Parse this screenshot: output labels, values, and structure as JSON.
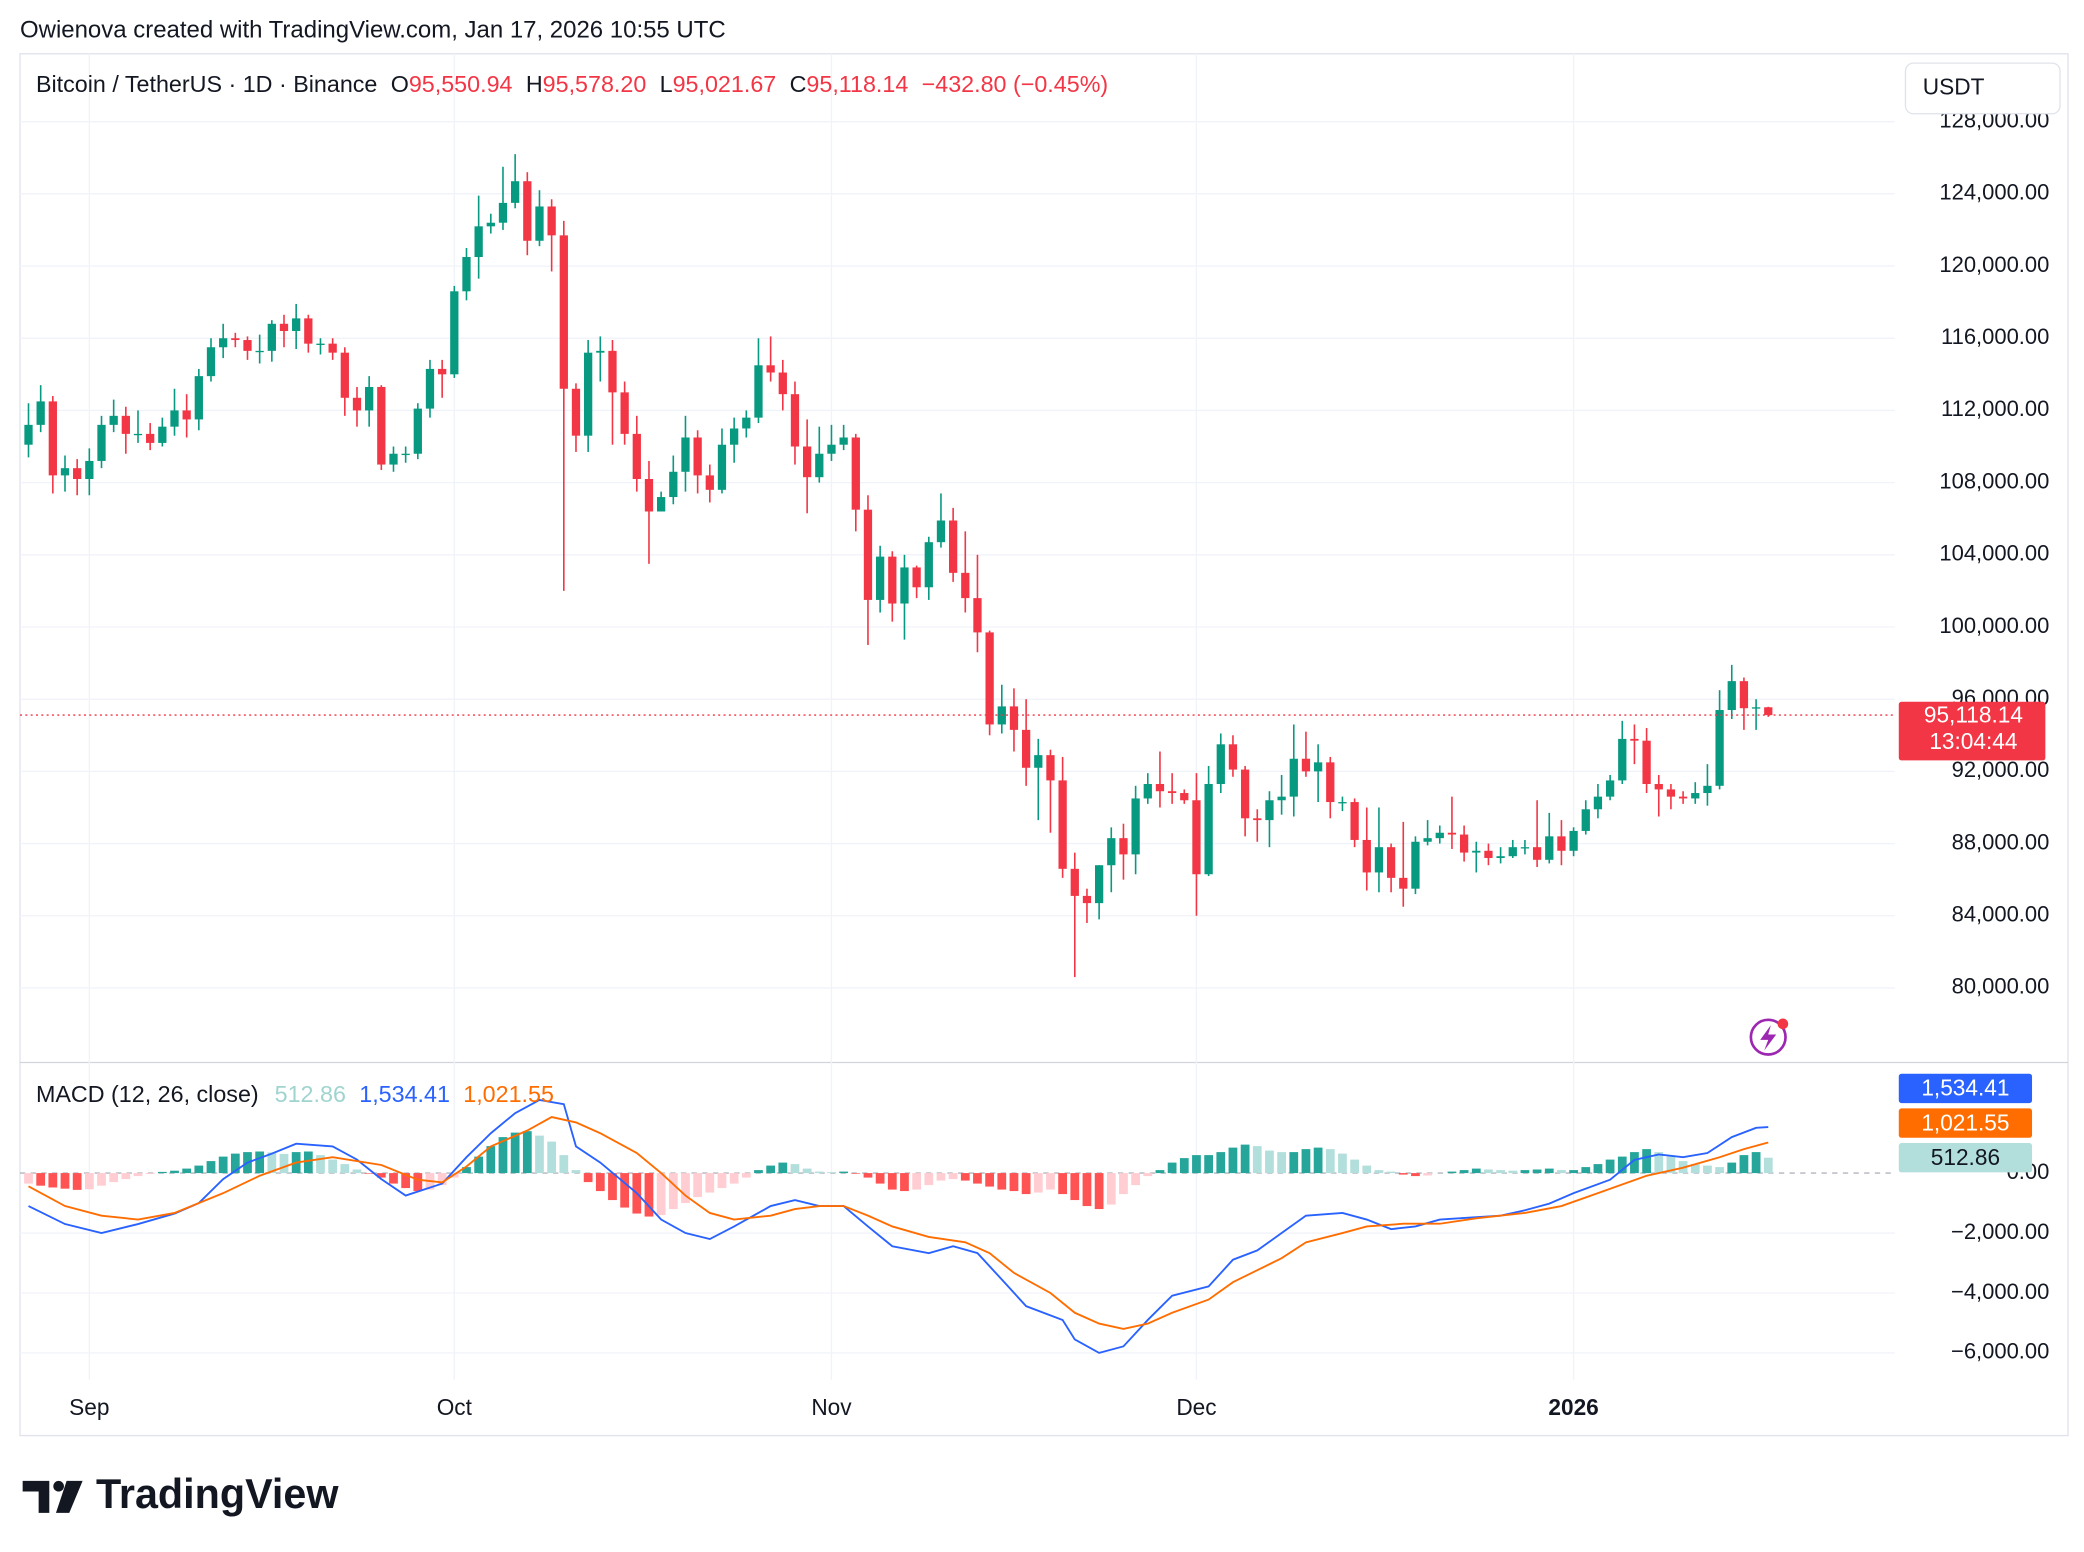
{
  "header": {
    "author": "Owienova created with TradingView.com, Jan 17, 2026 10:55 UTC",
    "brand": "TradingView"
  },
  "chart_data": [
    {
      "type": "candlestick",
      "title": "Bitcoin / TetherUS · 1D · Binance",
      "currency": "USDT",
      "legend": [
        {
          "key": "O",
          "value": "95,550.94"
        },
        {
          "key": "H",
          "value": "95,578.20"
        },
        {
          "key": "L",
          "value": "95,021.67"
        },
        {
          "key": "C",
          "value": "95,118.14"
        }
      ],
      "change": "−432.80 (−0.45%)",
      "last_label": "95,118.14",
      "countdown": "13:04:44",
      "up_color": "#089981",
      "down_color": "#f23645",
      "grid": true,
      "xlim": [
        -0.7,
        153.4
      ],
      "xticks": [
        {
          "value": 5,
          "label": "Sep"
        },
        {
          "value": 35,
          "label": "Oct"
        },
        {
          "value": 66,
          "label": "Nov"
        },
        {
          "value": 96,
          "label": "Dec"
        },
        {
          "value": 127,
          "label": "2026",
          "bold": true
        }
      ],
      "ylim": [
        75870,
        131760
      ],
      "yticks": [
        {
          "value": 80000,
          "label": "80,000.00"
        },
        {
          "value": 84000,
          "label": "84,000.00"
        },
        {
          "value": 88000,
          "label": "88,000.00"
        },
        {
          "value": 92000,
          "label": "92,000.00"
        },
        {
          "value": 96000,
          "label": "96,000.00"
        },
        {
          "value": 100000,
          "label": "100,000.00"
        },
        {
          "value": 104000,
          "label": "104,000.00"
        },
        {
          "value": 108000,
          "label": "108,000.00"
        },
        {
          "value": 112000,
          "label": "112,000.00"
        },
        {
          "value": 116000,
          "label": "116,000.00"
        },
        {
          "value": 120000,
          "label": "120,000.00"
        },
        {
          "value": 124000,
          "label": "124,000.00"
        },
        {
          "value": 128000,
          "label": "128,000.00"
        }
      ],
      "open": [
        110100,
        111200,
        112500,
        108400,
        108800,
        108200,
        109200,
        111200,
        111700,
        110700,
        110700,
        110200,
        111100,
        112000,
        111500,
        113900,
        115500,
        116000,
        115900,
        115300,
        115300,
        116800,
        116400,
        117100,
        115700,
        115700,
        115200,
        112700,
        112000,
        113300,
        109000,
        109600,
        109600,
        112100,
        114300,
        114000,
        118600,
        120500,
        122200,
        122400,
        123500,
        124700,
        121400,
        123300,
        121700,
        113200,
        110600,
        115200,
        115300,
        113000,
        110700,
        108200,
        106400,
        107200,
        108600,
        110500,
        108400,
        107600,
        110100,
        111000,
        111600,
        114500,
        114100,
        112900,
        110000,
        108300,
        109600,
        110100,
        110500,
        106500,
        101500,
        103900,
        101300,
        103300,
        102200,
        104700,
        105900,
        103000,
        101600,
        99700,
        94600,
        95600,
        94300,
        92200,
        92900,
        91500,
        86600,
        85100,
        84700,
        86800,
        88300,
        87400,
        90500,
        91300,
        90900,
        90800,
        90400,
        86300,
        91300,
        93500,
        92100,
        89400,
        89300,
        90400,
        90600,
        92700,
        92000,
        92500,
        90300,
        90300,
        88200,
        86400,
        87800,
        86100,
        85500,
        88100,
        88300,
        88600,
        88500,
        87500,
        87600,
        87200,
        87300,
        87800,
        87800,
        87100,
        88400,
        87600,
        88700,
        89900,
        90600,
        91500,
        93800,
        93700,
        91300,
        91000,
        90600,
        90500,
        90800,
        91200,
        95400,
        97000,
        95500,
        95550.94
      ],
      "high": [
        112400,
        113400,
        112800,
        109500,
        109300,
        109900,
        111700,
        112600,
        112200,
        112000,
        111300,
        111600,
        113200,
        112900,
        114300,
        116000,
        116800,
        116300,
        116100,
        116200,
        117000,
        117300,
        117900,
        117300,
        116000,
        116000,
        115500,
        113300,
        113900,
        113400,
        110000,
        110000,
        112400,
        114800,
        114800,
        118900,
        121000,
        123900,
        122900,
        125500,
        126200,
        125200,
        124200,
        123700,
        122500,
        113500,
        115900,
        116100,
        115900,
        113600,
        111700,
        109200,
        107500,
        109500,
        111700,
        110900,
        109000,
        111000,
        111600,
        112000,
        116000,
        116100,
        114800,
        113600,
        111500,
        111100,
        111200,
        111200,
        110700,
        107300,
        104500,
        104200,
        104000,
        103400,
        105000,
        107400,
        106600,
        105300,
        104000,
        99800,
        96800,
        96600,
        96000,
        93800,
        93200,
        92800,
        87500,
        85500,
        86800,
        88900,
        89100,
        91200,
        91900,
        93100,
        91900,
        91000,
        91900,
        92300,
        94100,
        94000,
        92300,
        89900,
        90900,
        91800,
        94600,
        94200,
        93500,
        92800,
        90600,
        90500,
        90000,
        90000,
        88000,
        89200,
        88400,
        89300,
        89000,
        90600,
        89000,
        88100,
        88000,
        87800,
        88200,
        88200,
        90400,
        89700,
        89300,
        88900,
        90400,
        91300,
        91800,
        94800,
        94600,
        94400,
        91800,
        91300,
        90900,
        91400,
        92400,
        96500,
        97900,
        97200,
        96000,
        95578.2
      ],
      "low": [
        109400,
        110800,
        107400,
        107500,
        107300,
        107300,
        108800,
        110800,
        109600,
        110200,
        109800,
        110000,
        110600,
        110500,
        110900,
        113600,
        114900,
        115500,
        114800,
        114600,
        114700,
        115500,
        115400,
        115200,
        115100,
        114800,
        111700,
        111100,
        111100,
        108700,
        108600,
        109100,
        109300,
        111600,
        112700,
        113800,
        118100,
        119300,
        121800,
        122000,
        123200,
        120600,
        121100,
        119700,
        102000,
        109700,
        109700,
        113600,
        110100,
        110100,
        107500,
        103500,
        106400,
        106800,
        107500,
        107400,
        106900,
        107400,
        109100,
        110500,
        111300,
        113600,
        112000,
        109000,
        106300,
        108000,
        109200,
        109800,
        105300,
        99000,
        100800,
        100300,
        99300,
        101600,
        101500,
        104400,
        102500,
        100800,
        98600,
        94000,
        94100,
        93100,
        91200,
        89300,
        88600,
        86100,
        80600,
        83600,
        83800,
        85300,
        86000,
        86300,
        90200,
        90000,
        90200,
        90200,
        84000,
        86200,
        90800,
        91700,
        88400,
        88100,
        87800,
        89600,
        89500,
        91700,
        90300,
        89400,
        89800,
        87800,
        85400,
        85300,
        85300,
        84500,
        85200,
        87900,
        88000,
        87700,
        87000,
        86400,
        86800,
        86900,
        87200,
        87400,
        86700,
        86900,
        86800,
        87300,
        88500,
        89400,
        90400,
        91300,
        92400,
        90800,
        89500,
        89900,
        90200,
        90200,
        90100,
        91000,
        94900,
        94300,
        94300,
        95021.67
      ],
      "close": [
        111200,
        112500,
        108400,
        108800,
        108200,
        109200,
        111200,
        111700,
        110700,
        110700,
        110200,
        111100,
        112000,
        111500,
        113900,
        115500,
        116000,
        115900,
        115300,
        115300,
        116800,
        116400,
        117100,
        115700,
        115700,
        115200,
        112700,
        112000,
        113300,
        109000,
        109600,
        109600,
        112100,
        114300,
        114000,
        118600,
        120500,
        122200,
        122400,
        123500,
        124700,
        121400,
        123300,
        121700,
        113200,
        110600,
        115200,
        115300,
        113000,
        110700,
        108200,
        106400,
        107200,
        108600,
        110500,
        108400,
        107600,
        110100,
        111000,
        111600,
        114500,
        114100,
        112900,
        110000,
        108300,
        109600,
        110100,
        110500,
        106500,
        101500,
        103900,
        101300,
        103300,
        102200,
        104700,
        105900,
        103000,
        101600,
        99700,
        94600,
        95600,
        94300,
        92200,
        92900,
        91500,
        86600,
        85100,
        84700,
        86800,
        88300,
        87400,
        90500,
        91300,
        90900,
        90800,
        90400,
        86300,
        91300,
        93500,
        92100,
        89400,
        89300,
        90400,
        90600,
        92700,
        92000,
        92500,
        90300,
        90300,
        88200,
        86400,
        87800,
        86100,
        85500,
        88100,
        88300,
        88600,
        88500,
        87500,
        87600,
        87200,
        87300,
        87800,
        87800,
        87100,
        88400,
        87600,
        88700,
        89900,
        90600,
        91500,
        93800,
        93700,
        91300,
        91000,
        90600,
        90500,
        90800,
        91200,
        95400,
        97000,
        95500,
        95550.94,
        95118.14
      ]
    },
    {
      "type": "macd",
      "title": "MACD (12, 26, close)",
      "xlim": [
        -0.7,
        153.4
      ],
      "ylim": [
        -6890,
        3690
      ],
      "yticks": [
        {
          "value": 0,
          "label": "0.00"
        },
        {
          "value": -2000,
          "label": "−2,000.00"
        },
        {
          "value": -4000,
          "label": "−4,000.00"
        },
        {
          "value": -6000,
          "label": "−6,000.00"
        }
      ],
      "histogram": {
        "value_label": "512.86",
        "colors": [
          "#26a69a",
          "#b2dfdb",
          "#ff5252",
          "#ffcdd2"
        ],
        "values": [
          -350,
          -420,
          -480,
          -520,
          -560,
          -540,
          -420,
          -300,
          -200,
          -100,
          -30,
          40,
          80,
          150,
          250,
          400,
          550,
          650,
          700,
          720,
          690,
          640,
          700,
          720,
          600,
          450,
          300,
          120,
          -20,
          -150,
          -350,
          -500,
          -600,
          -550,
          -400,
          -150,
          200,
          550,
          900,
          1200,
          1350,
          1400,
          1250,
          1050,
          600,
          100,
          -300,
          -600,
          -900,
          -1150,
          -1350,
          -1450,
          -1400,
          -1200,
          -1000,
          -800,
          -650,
          -500,
          -350,
          -150,
          100,
          250,
          350,
          300,
          150,
          50,
          30,
          50,
          -20,
          -150,
          -350,
          -550,
          -600,
          -550,
          -400,
          -250,
          -200,
          -250,
          -350,
          -450,
          -550,
          -600,
          -700,
          -650,
          -550,
          -700,
          -900,
          -1100,
          -1200,
          -1050,
          -700,
          -400,
          -100,
          100,
          350,
          500,
          600,
          600,
          700,
          850,
          950,
          900,
          750,
          700,
          700,
          800,
          850,
          800,
          650,
          450,
          250,
          100,
          50,
          -50,
          -100,
          -80,
          0,
          50,
          100,
          150,
          120,
          100,
          80,
          100,
          120,
          150,
          100,
          100,
          200,
          300,
          450,
          550,
          700,
          800,
          700,
          550,
          400,
          300,
          250,
          200,
          350,
          600,
          700,
          512.86
        ]
      },
      "series": [
        {
          "color": "#2962ff",
          "value_label": "1,534.41",
          "x": [
            0,
            3,
            6,
            9,
            12,
            14,
            16,
            18,
            20,
            22,
            25,
            27,
            29,
            31,
            34,
            36,
            38,
            40,
            42,
            44,
            45,
            47,
            50,
            52,
            54,
            56,
            58,
            61,
            63,
            65,
            67,
            69,
            71,
            74,
            76,
            78,
            80,
            82,
            85,
            86,
            88,
            90,
            92,
            94,
            97,
            99,
            101,
            103,
            105,
            108,
            110,
            112,
            114,
            116,
            119,
            121,
            123,
            125,
            127,
            130,
            132,
            134,
            136,
            138,
            140,
            142,
            143
          ],
          "values": [
            -1100,
            -1700,
            -2000,
            -1700,
            -1350,
            -1000,
            -200,
            350,
            650,
            980,
            890,
            450,
            -200,
            -750,
            -350,
            530,
            1330,
            2000,
            2440,
            2300,
            890,
            350,
            -670,
            -1550,
            -2000,
            -2200,
            -1780,
            -1100,
            -900,
            -1100,
            -1100,
            -1780,
            -2440,
            -2670,
            -2440,
            -2670,
            -3550,
            -4440,
            -4900,
            -5550,
            -6000,
            -5780,
            -4900,
            -4090,
            -3780,
            -2890,
            -2580,
            -2000,
            -1420,
            -1330,
            -1550,
            -1870,
            -1780,
            -1550,
            -1470,
            -1420,
            -1240,
            -1020,
            -670,
            -220,
            440,
            620,
            530,
            670,
            1200,
            1510,
            1534.41
          ]
        },
        {
          "color": "#ff6d00",
          "value_label": "1,021.55",
          "x": [
            0,
            3,
            6,
            9,
            12,
            16,
            19,
            22,
            25,
            29,
            32,
            34,
            36,
            38,
            41,
            43,
            45,
            47,
            50,
            52,
            54,
            56,
            58,
            61,
            63,
            65,
            67,
            69,
            71,
            74,
            77,
            79,
            81,
            84,
            86,
            88,
            90,
            92,
            94,
            97,
            99,
            101,
            103,
            105,
            108,
            110,
            113,
            116,
            119,
            123,
            126,
            129,
            133,
            136,
            139,
            141,
            143
          ],
          "values": [
            -440,
            -1100,
            -1420,
            -1550,
            -1330,
            -670,
            -90,
            350,
            530,
            270,
            -220,
            -310,
            220,
            890,
            1420,
            1870,
            1690,
            1330,
            670,
            0,
            -750,
            -1330,
            -1550,
            -1420,
            -1200,
            -1100,
            -1100,
            -1420,
            -1780,
            -2130,
            -2310,
            -2670,
            -3330,
            -4000,
            -4660,
            -5020,
            -5200,
            -5020,
            -4660,
            -4220,
            -3640,
            -3240,
            -2840,
            -2310,
            -2000,
            -1780,
            -1690,
            -1690,
            -1510,
            -1330,
            -1100,
            -670,
            -90,
            180,
            530,
            800,
            1021.55
          ]
        }
      ]
    }
  ]
}
